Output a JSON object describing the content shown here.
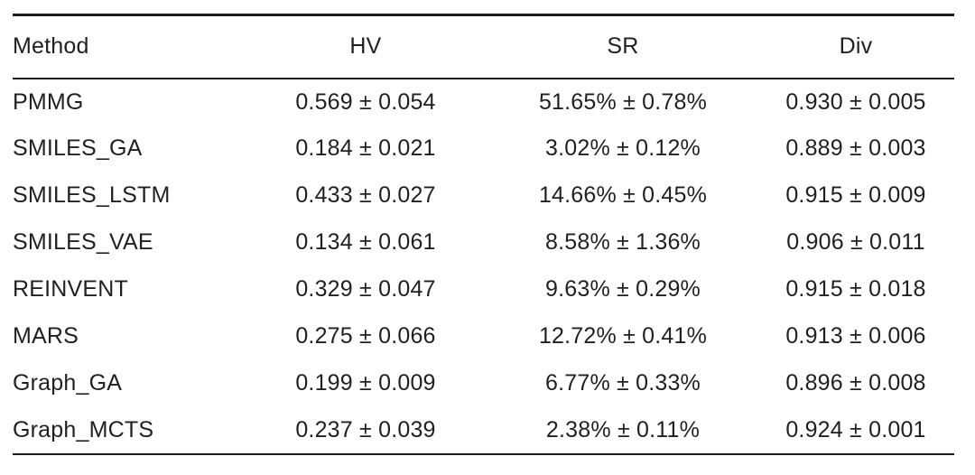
{
  "table": {
    "type": "table",
    "columns": [
      {
        "label": "Method",
        "align": "left"
      },
      {
        "label": "HV",
        "align": "center"
      },
      {
        "label": "SR",
        "align": "center"
      },
      {
        "label": "Div",
        "align": "center"
      }
    ],
    "rows": [
      {
        "method": "PMMG",
        "hv": "0.569 ± 0.054",
        "sr": "51.65% ± 0.78%",
        "div": "0.930 ± 0.005"
      },
      {
        "method": "SMILES_GA",
        "hv": "0.184 ± 0.021",
        "sr": "3.02% ± 0.12%",
        "div": "0.889 ± 0.003"
      },
      {
        "method": "SMILES_LSTM",
        "hv": "0.433 ± 0.027",
        "sr": "14.66% ± 0.45%",
        "div": "0.915 ± 0.009"
      },
      {
        "method": "SMILES_VAE",
        "hv": "0.134 ± 0.061",
        "sr": "8.58% ± 1.36%",
        "div": "0.906 ± 0.011"
      },
      {
        "method": "REINVENT",
        "hv": "0.329 ± 0.047",
        "sr": "9.63% ± 0.29%",
        "div": "0.915 ± 0.018"
      },
      {
        "method": "MARS",
        "hv": "0.275 ± 0.066",
        "sr": "12.72% ± 0.41%",
        "div": "0.913 ± 0.006"
      },
      {
        "method": "Graph_GA",
        "hv": "0.199 ± 0.009",
        "sr": "6.77% ± 0.33%",
        "div": "0.896 ± 0.008"
      },
      {
        "method": "Graph_MCTS",
        "hv": "0.237 ± 0.039",
        "sr": "2.38% ± 0.11%",
        "div": "0.924 ± 0.001"
      }
    ],
    "colors": {
      "text": "#231f20",
      "rule": "#1c1c1c",
      "background": "#ffffff"
    }
  }
}
